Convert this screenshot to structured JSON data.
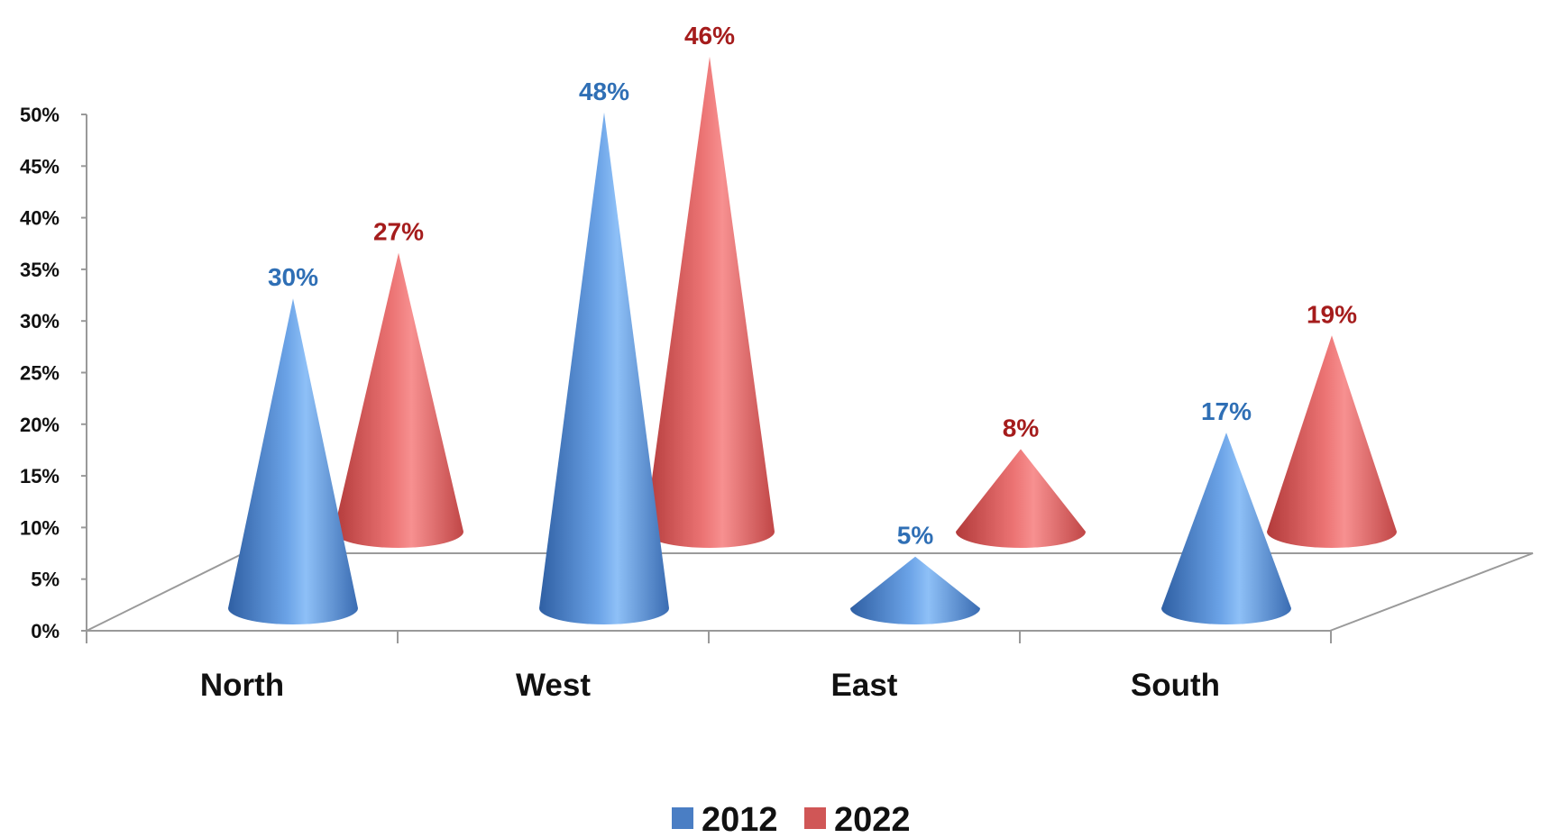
{
  "chart_data": {
    "type": "bar",
    "shape": "cone-3d",
    "categories": [
      "North",
      "West",
      "East",
      "South"
    ],
    "series": [
      {
        "name": "2012",
        "values": [
          30,
          48,
          5,
          17
        ],
        "labels": [
          "30%",
          "48%",
          "5%",
          "17%"
        ]
      },
      {
        "name": "2022",
        "values": [
          27,
          46,
          8,
          19
        ],
        "labels": [
          "27%",
          "46%",
          "8%",
          "19%"
        ]
      }
    ],
    "y_ticks": [
      "0%",
      "5%",
      "10%",
      "15%",
      "20%",
      "25%",
      "30%",
      "35%",
      "40%",
      "45%",
      "50%"
    ],
    "ylim": [
      0,
      50
    ],
    "grid": false,
    "legend_position": "bottom",
    "colors": {
      "series_2012": "#4a7ec4",
      "series_2012_label": "#2f6fb5",
      "series_2022": "#d05656",
      "series_2022_label": "#a51c1c"
    }
  }
}
